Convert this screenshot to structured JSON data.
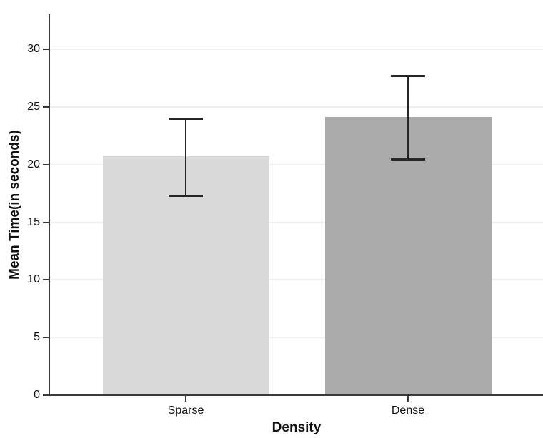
{
  "chart_data": {
    "type": "bar",
    "title": "",
    "xlabel": "Density",
    "ylabel": "Mean Time(in seconds)",
    "categories": [
      "Sparse",
      "Dense"
    ],
    "bars": [
      {
        "category": "Sparse",
        "mean": 20.7,
        "ci_low": 17.3,
        "ci_high": 24.0,
        "fill": "#d9d9d9"
      },
      {
        "category": "Dense",
        "mean": 24.1,
        "ci_low": 20.5,
        "ci_high": 27.7,
        "fill": "#aaaaaa"
      }
    ],
    "y_axis": {
      "label": "Mean Time(in seconds)",
      "ticks": [
        0,
        5,
        10,
        15,
        20,
        25,
        30
      ],
      "range": [
        0,
        33
      ]
    },
    "x_axis": {
      "label": "Density"
    },
    "legend": "none",
    "grid": "horizontal",
    "error_bars": "capped vertical error bars"
  },
  "colors": {
    "bar_sparse": "#d9d9d9",
    "bar_dense": "#aaaaaa",
    "axis": "#3a3a3a",
    "gridline": "#eeeeee",
    "error_bar": "#262626",
    "text": "#111111",
    "background": "#ffffff"
  }
}
